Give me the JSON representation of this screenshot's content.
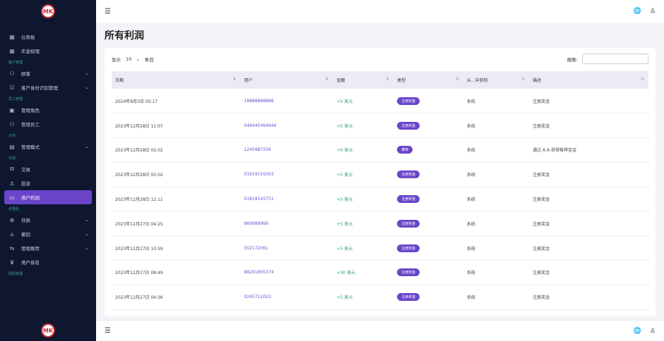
{
  "logo": {
    "text": "MK"
  },
  "sidebar": {
    "entries": [
      {
        "kind": "item",
        "icon": "▦",
        "label": "仪表板"
      },
      {
        "kind": "item",
        "icon": "▦",
        "label": "实金经理"
      },
      {
        "kind": "section",
        "label": "客户管理"
      },
      {
        "kind": "item",
        "icon": "⚇",
        "label": "顾客",
        "chevron": "⌄"
      },
      {
        "kind": "item",
        "icon": "☑",
        "label": "客户身份识别管理",
        "chevron": "⌄"
      },
      {
        "kind": "section",
        "label": "员工管理"
      },
      {
        "kind": "item",
        "icon": "▣",
        "label": "管理角色"
      },
      {
        "kind": "item",
        "icon": "⚇",
        "label": "管理员工"
      },
      {
        "kind": "section",
        "label": "计划"
      },
      {
        "kind": "item",
        "icon": "▤",
        "label": "管理模式",
        "chevron": "⌄"
      },
      {
        "kind": "section",
        "label": "交易"
      },
      {
        "kind": "item",
        "icon": "⧉",
        "label": "交易"
      },
      {
        "kind": "item",
        "icon": "⚓",
        "label": "投资"
      },
      {
        "kind": "item",
        "icon": "▭",
        "label": "用户利润",
        "active": true
      },
      {
        "kind": "section",
        "label": "必要品"
      },
      {
        "kind": "item",
        "icon": "⊕",
        "label": "存款",
        "chevron": "⌄"
      },
      {
        "kind": "item",
        "icon": "⌂",
        "label": "撤回",
        "chevron": "⌄"
      },
      {
        "kind": "item",
        "icon": "⇆",
        "label": "管理推荐",
        "chevron": "⌄"
      },
      {
        "kind": "item",
        "icon": "♛",
        "label": "用户排名"
      },
      {
        "kind": "section",
        "label": "网站管理"
      }
    ]
  },
  "topbar": {
    "menu_icon": "☰",
    "globe_icon": "🌐",
    "user_icon": "♙"
  },
  "page": {
    "title": "所有利润"
  },
  "controls": {
    "show": "显示",
    "entries_value": "10",
    "chevron": "⌄",
    "entries": "条目",
    "search_label": "搜索:"
  },
  "table": {
    "headers": [
      "日期",
      "用户",
      "金额",
      "类型",
      "从...中获利",
      "描述"
    ],
    "sort_icon": "⇅",
    "rows": [
      {
        "date": "2024年8月3日 05:17",
        "user": "18888888888",
        "amount": "+5 美元",
        "type": "注册奖金",
        "from": "系统",
        "desc": "注册奖金"
      },
      {
        "date": "2023年12月28日 11:07",
        "user": "546445464646",
        "amount": "+5 美元",
        "type": "注册奖金",
        "from": "系统",
        "desc": "注册奖金"
      },
      {
        "date": "2023年12月28日 02:02",
        "user": "1245987256",
        "amount": "+0 美元",
        "type": "推荐",
        "from": "系统",
        "desc": "通过 A A 获得推荐奖金"
      },
      {
        "date": "2023年12月28日 02:02",
        "user": "01919155003",
        "amount": "+5 美元",
        "type": "注册奖金",
        "from": "系统",
        "desc": "注册奖金"
      },
      {
        "date": "2023年12月28日 12:11",
        "user": "01818145751",
        "amount": "+5 美元",
        "type": "注册奖金",
        "from": "系统",
        "desc": "注册奖金"
      },
      {
        "date": "2023年12月27日 04:25",
        "user": "860689969",
        "amount": "+5 美元",
        "type": "注册奖金",
        "from": "系统",
        "desc": "注册奖金"
      },
      {
        "date": "2023年12月27日 10:59",
        "user": "552172061",
        "amount": "+5 美元",
        "type": "注册奖金",
        "from": "系统",
        "desc": "注册奖金"
      },
      {
        "date": "2023年12月27日 08:49",
        "user": "88291895374",
        "amount": "+30 美元",
        "type": "注册奖金",
        "from": "系统",
        "desc": "注册奖金"
      },
      {
        "date": "2023年12月27日 04:36",
        "user": "0245712023",
        "amount": "+5 美元",
        "type": "注册奖金",
        "from": "系统",
        "desc": "注册奖金"
      }
    ]
  }
}
